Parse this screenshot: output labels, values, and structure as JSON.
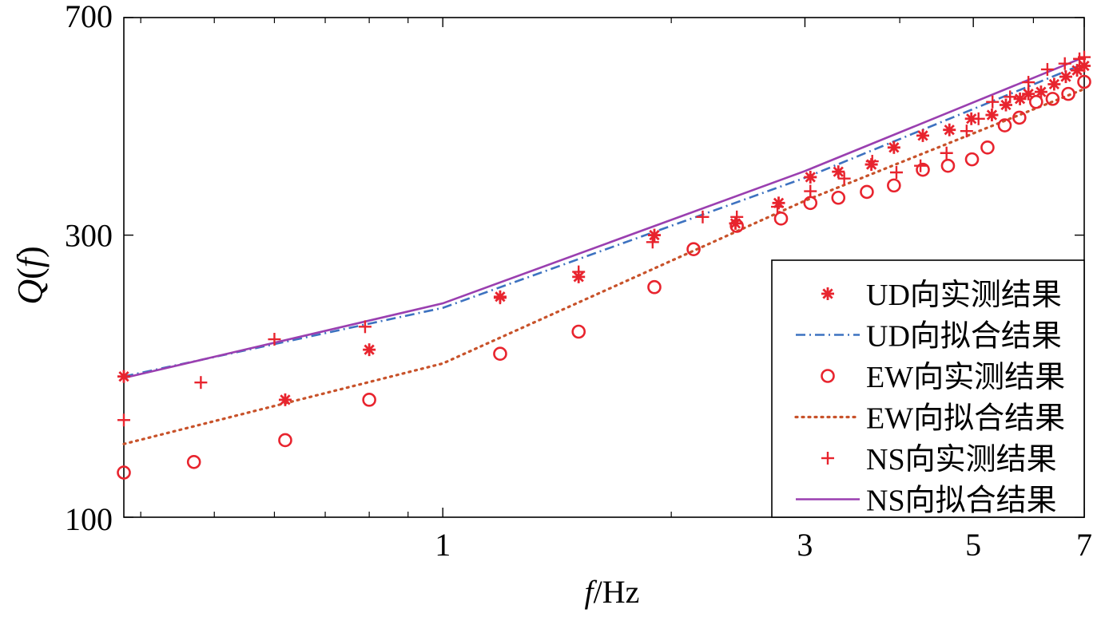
{
  "chart_data": {
    "type": "scatter",
    "xlabel_italic": "f",
    "xlabel_unit": "/Hz",
    "ylabel_func": "Q",
    "ylabel_arg": "f",
    "x_scale": "log",
    "y_scale": "log",
    "xlim": [
      0.38,
      7
    ],
    "ylim": [
      100,
      700
    ],
    "x_ticks": [
      {
        "value": 1,
        "label": "1"
      },
      {
        "value": 3,
        "label": "3"
      },
      {
        "value": 5,
        "label": "5"
      },
      {
        "value": 7,
        "label": "7"
      }
    ],
    "y_ticks": [
      {
        "value": 100,
        "label": "100"
      },
      {
        "value": 300,
        "label": "300"
      },
      {
        "value": 700,
        "label": "700"
      }
    ],
    "x_minor_ticks": [
      0.4,
      0.5,
      0.6,
      0.7,
      0.8,
      0.9,
      2,
      4,
      6
    ],
    "grid": false,
    "legend_position": "bottom-right",
    "series": [
      {
        "name": "UD向实测结果",
        "kind": "points",
        "marker": "asterisk",
        "color": "#e8242e",
        "x": [
          0.38,
          0.62,
          0.8,
          1.19,
          1.51,
          1.9,
          2.43,
          2.77,
          3.05,
          3.32,
          3.67,
          3.93,
          4.29,
          4.65,
          4.97,
          5.29,
          5.52,
          5.76,
          5.91,
          6.14,
          6.39,
          6.62,
          6.85,
          7.0
        ],
        "y": [
          173,
          158,
          192,
          236,
          255,
          300,
          314,
          340,
          376,
          384,
          395,
          422,
          442,
          452,
          472,
          479,
          498,
          510,
          520,
          524,
          540,
          556,
          570,
          580
        ]
      },
      {
        "name": "UD向拟合结果",
        "kind": "line",
        "style": "dashdot",
        "color": "#3d72c0",
        "x": [
          0.38,
          1.0,
          3.0,
          7.0
        ],
        "y": [
          173,
          226,
          375,
          585
        ]
      },
      {
        "name": "EW向实测结果",
        "kind": "points",
        "marker": "circle",
        "color": "#e8242e",
        "x": [
          0.38,
          0.47,
          0.62,
          0.8,
          1.19,
          1.51,
          1.9,
          2.14,
          2.44,
          2.79,
          3.05,
          3.32,
          3.62,
          3.93,
          4.29,
          4.63,
          4.98,
          5.22,
          5.5,
          5.75,
          6.05,
          6.36,
          6.67,
          7.0
        ],
        "y": [
          119,
          124,
          135,
          158,
          189,
          206,
          245,
          284,
          311,
          320,
          340,
          347,
          355,
          364,
          387,
          393,
          403,
          422,
          460,
          474,
          504,
          510,
          520,
          545
        ]
      },
      {
        "name": "EW向拟合结果",
        "kind": "line",
        "style": "dotted",
        "color": "#c8522a",
        "x": [
          0.38,
          1.0,
          3.0,
          7.0
        ],
        "y": [
          133,
          182,
          343,
          530
        ]
      },
      {
        "name": "NS向实测结果",
        "kind": "points",
        "marker": "plus",
        "color": "#e8242e",
        "x": [
          0.38,
          0.48,
          0.6,
          0.79,
          1.19,
          1.51,
          1.89,
          2.2,
          2.44,
          2.76,
          3.05,
          3.38,
          3.68,
          3.96,
          4.26,
          4.61,
          4.9,
          5.08,
          5.3,
          5.59,
          5.91,
          6.26,
          6.6,
          6.9,
          7.0
        ],
        "y": [
          146,
          169,
          200,
          210,
          235,
          260,
          292,
          322,
          322,
          335,
          356,
          374,
          400,
          383,
          393,
          413,
          450,
          472,
          504,
          514,
          544,
          572,
          585,
          596,
          600
        ]
      },
      {
        "name": "NS向拟合结果",
        "kind": "line",
        "style": "solid",
        "color": "#9a3fb0",
        "x": [
          0.38,
          1.0,
          3.0,
          7.0
        ],
        "y": [
          172,
          230,
          385,
          600
        ]
      }
    ]
  }
}
